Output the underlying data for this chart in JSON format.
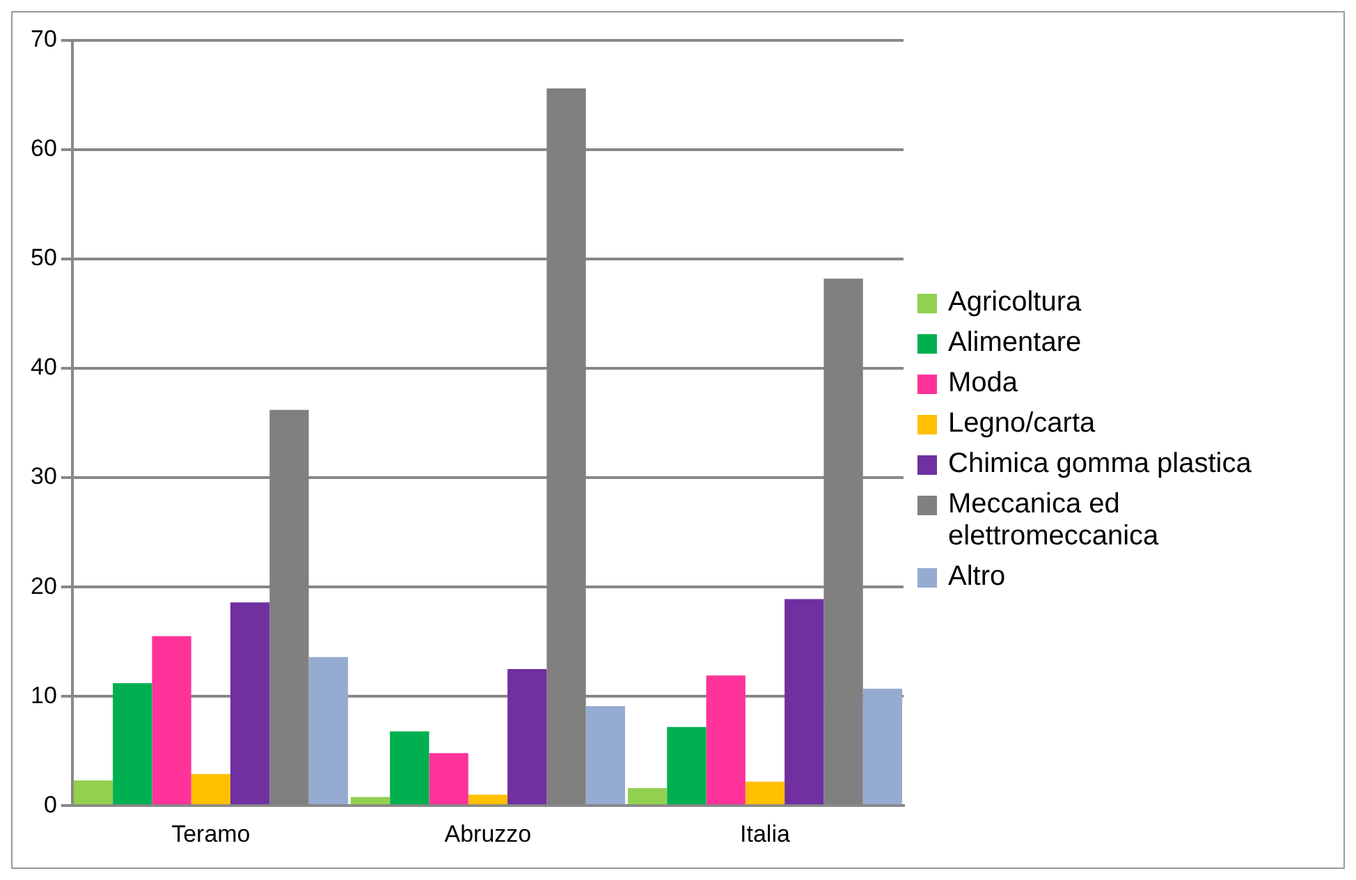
{
  "chart_data": {
    "type": "bar",
    "categories": [
      "Teramo",
      "Abruzzo",
      "Italia"
    ],
    "series": [
      {
        "name": "Agricoltura",
        "color": "#92d050",
        "values": [
          2.3,
          0.8,
          1.6
        ]
      },
      {
        "name": "Alimentare",
        "color": "#00b050",
        "values": [
          11.2,
          6.8,
          7.2
        ]
      },
      {
        "name": "Moda",
        "color": "#ff3399",
        "values": [
          15.5,
          4.8,
          11.9
        ]
      },
      {
        "name": "Legno/carta",
        "color": "#ffc000",
        "values": [
          2.9,
          1.0,
          2.2
        ]
      },
      {
        "name": "Chimica gomma plastica",
        "color": "#7030a0",
        "values": [
          18.6,
          12.5,
          18.9
        ]
      },
      {
        "name": "Meccanica ed elettromeccanica",
        "color": "#808080",
        "values": [
          36.2,
          65.6,
          48.2
        ]
      },
      {
        "name": "Altro",
        "color": "#95abd0",
        "values": [
          13.6,
          9.1,
          10.7
        ]
      }
    ],
    "ylim": [
      0,
      70
    ],
    "yticks": [
      0,
      10,
      20,
      30,
      40,
      50,
      60,
      70
    ],
    "grid": "y",
    "legend": "right"
  }
}
